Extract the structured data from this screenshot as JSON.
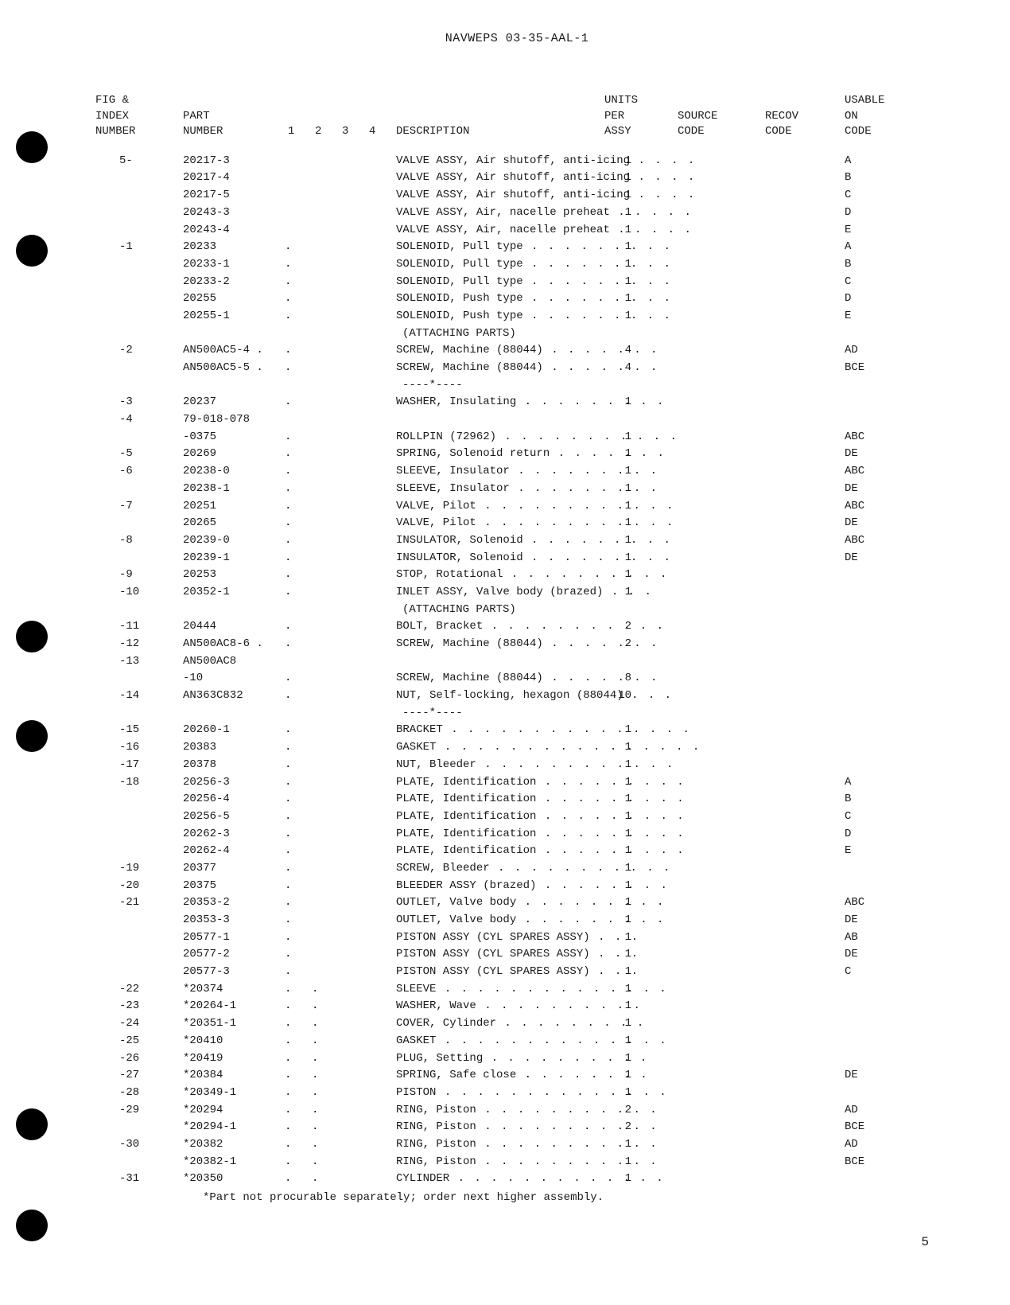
{
  "doc_id": "NAVWEPS 03-35-AAL-1",
  "page_number": "5",
  "footnote": "*Part not procurable separately; order next higher assembly.",
  "headers": {
    "fig": [
      "FIG &",
      "INDEX",
      "NUMBER"
    ],
    "part": [
      "PART",
      "NUMBER"
    ],
    "indent_labels": [
      "1",
      "2",
      "3",
      "4"
    ],
    "desc": "DESCRIPTION",
    "units": [
      "UNITS",
      "PER",
      "ASSY"
    ],
    "source": [
      "SOURCE",
      "CODE"
    ],
    "recov": [
      "RECOV",
      "CODE"
    ],
    "usable": [
      "USABLE",
      "ON",
      "CODE"
    ]
  },
  "rows": [
    {
      "fig": "5-",
      "part": "20217-3",
      "indent": 0,
      "desc": "VALVE ASSY, Air shutoff, anti-icing",
      "dots": 4,
      "units": "1",
      "usable": "A"
    },
    {
      "fig": "",
      "part": "20217-4",
      "indent": 0,
      "desc": "VALVE ASSY, Air shutoff, anti-icing",
      "dots": 4,
      "units": "1",
      "usable": "B"
    },
    {
      "fig": "",
      "part": "20217-5",
      "indent": 0,
      "desc": "VALVE ASSY, Air shutoff, anti-icing",
      "dots": 4,
      "units": "1",
      "usable": "C"
    },
    {
      "fig": "",
      "part": "20243-3",
      "indent": 0,
      "desc": "VALVE ASSY, Air, nacelle preheat",
      "dots": 5,
      "units": "1",
      "usable": "D"
    },
    {
      "fig": "",
      "part": "20243-4",
      "indent": 0,
      "desc": "VALVE ASSY, Air, nacelle preheat",
      "dots": 5,
      "units": "1",
      "usable": "E"
    },
    {
      "fig": "-1",
      "part": "20233",
      "indent": 1,
      "desc": "SOLENOID, Pull type",
      "dots": 9,
      "units": "1",
      "usable": "A"
    },
    {
      "fig": "",
      "part": "20233-1",
      "indent": 1,
      "desc": "SOLENOID, Pull type",
      "dots": 9,
      "units": "1",
      "usable": "B"
    },
    {
      "fig": "",
      "part": "20233-2",
      "indent": 1,
      "desc": "SOLENOID, Pull type",
      "dots": 9,
      "units": "1",
      "usable": "C"
    },
    {
      "fig": "",
      "part": "20255",
      "indent": 1,
      "desc": "SOLENOID, Push type",
      "dots": 9,
      "units": "1",
      "usable": "D"
    },
    {
      "fig": "",
      "part": "20255-1",
      "indent": 1,
      "desc": "SOLENOID, Push type",
      "dots": 9,
      "units": "1",
      "usable": "E"
    },
    {
      "type": "note",
      "text": "(ATTACHING PARTS)"
    },
    {
      "fig": "-2",
      "part": "AN500AC5-4",
      "pdot": true,
      "indent": 1,
      "desc": "SCREW, Machine (88044)",
      "dots": 7,
      "units": "4",
      "usable": "AD"
    },
    {
      "fig": "",
      "part": "AN500AC5-5",
      "pdot": true,
      "indent": 1,
      "desc": "SCREW, Machine (88044)",
      "dots": 7,
      "units": "4",
      "usable": "BCE"
    },
    {
      "type": "note",
      "text": "----*----"
    },
    {
      "fig": "-3",
      "part": "20237",
      "indent": 1,
      "desc": "WASHER, Insulating",
      "dots": 9,
      "units": "1",
      "usable": ""
    },
    {
      "fig": "-4",
      "part": "79-018-078",
      "indent": 0,
      "desc": "",
      "dots": 0,
      "units": "",
      "usable": ""
    },
    {
      "fig": "",
      "part": "-0375",
      "indent": 1,
      "desc": "ROLLPIN (72962)",
      "dots": 11,
      "units": "1",
      "usable": "ABC"
    },
    {
      "fig": "-5",
      "part": "20269",
      "indent": 1,
      "desc": "SPRING, Solenoid return",
      "dots": 7,
      "units": "1",
      "usable": "DE"
    },
    {
      "fig": "-6",
      "part": "20238-0",
      "indent": 1,
      "desc": "SLEEVE, Insulator",
      "dots": 9,
      "units": "1",
      "usable": "ABC"
    },
    {
      "fig": "",
      "part": "20238-1",
      "indent": 1,
      "desc": "SLEEVE, Insulator",
      "dots": 9,
      "units": "1",
      "usable": "DE"
    },
    {
      "fig": "-7",
      "part": "20251",
      "indent": 1,
      "desc": "VALVE, Pilot",
      "dots": 12,
      "units": "1",
      "usable": "ABC"
    },
    {
      "fig": "",
      "part": "20265",
      "indent": 1,
      "desc": "VALVE, Pilot",
      "dots": 12,
      "units": "1",
      "usable": "DE"
    },
    {
      "fig": "-8",
      "part": "20239-0",
      "indent": 1,
      "desc": "INSULATOR, Solenoid",
      "dots": 9,
      "units": "1",
      "usable": "ABC"
    },
    {
      "fig": "",
      "part": "20239-1",
      "indent": 1,
      "desc": "INSULATOR, Solenoid",
      "dots": 9,
      "units": "1",
      "usable": "DE"
    },
    {
      "fig": "-9",
      "part": "20253",
      "indent": 1,
      "desc": "STOP, Rotational",
      "dots": 10,
      "units": "1",
      "usable": ""
    },
    {
      "fig": "-10",
      "part": "20352-1",
      "indent": 1,
      "desc": "INLET ASSY, Valve body (brazed)",
      "dots": 3,
      "units": "1",
      "usable": ""
    },
    {
      "type": "note",
      "text": "(ATTACHING PARTS)"
    },
    {
      "fig": "-11",
      "part": "20444",
      "indent": 1,
      "desc": "BOLT, Bracket",
      "dots": 11,
      "units": "2",
      "usable": ""
    },
    {
      "fig": "-12",
      "part": "AN500AC8-6",
      "pdot": true,
      "indent": 1,
      "desc": "SCREW, Machine (88044)",
      "dots": 7,
      "units": "2",
      "usable": ""
    },
    {
      "fig": "-13",
      "part": "AN500AC8",
      "indent": 0,
      "desc": "",
      "dots": 0,
      "units": "",
      "usable": ""
    },
    {
      "fig": "",
      "part": "-10",
      "indent": 1,
      "desc": "SCREW, Machine (88044)",
      "dots": 7,
      "units": "8",
      "usable": ""
    },
    {
      "fig": "-14",
      "part": "AN363C832",
      "indent": 1,
      "desc": "NUT, Self-locking, hexagon (88044)",
      "dots": 3,
      "units": "10",
      "usable": ""
    },
    {
      "type": "note",
      "text": "----*----"
    },
    {
      "fig": "-15",
      "part": "20260-1",
      "indent": 1,
      "desc": "BRACKET",
      "dots": 15,
      "units": "1",
      "usable": ""
    },
    {
      "fig": "-16",
      "part": "20383",
      "indent": 1,
      "desc": "GASKET",
      "dots": 16,
      "units": "1",
      "usable": ""
    },
    {
      "fig": "-17",
      "part": "20378",
      "indent": 1,
      "desc": "NUT, Bleeder",
      "dots": 12,
      "units": "1",
      "usable": ""
    },
    {
      "fig": "-18",
      "part": "20256-3",
      "indent": 1,
      "desc": "PLATE, Identification",
      "dots": 9,
      "units": "1",
      "usable": "A"
    },
    {
      "fig": "",
      "part": "20256-4",
      "indent": 1,
      "desc": "PLATE, Identification",
      "dots": 9,
      "units": "1",
      "usable": "B"
    },
    {
      "fig": "",
      "part": "20256-5",
      "indent": 1,
      "desc": "PLATE, Identification",
      "dots": 9,
      "units": "1",
      "usable": "C"
    },
    {
      "fig": "",
      "part": "20262-3",
      "indent": 1,
      "desc": "PLATE, Identification",
      "dots": 9,
      "units": "1",
      "usable": "D"
    },
    {
      "fig": "",
      "part": "20262-4",
      "indent": 1,
      "desc": "PLATE, Identification",
      "dots": 9,
      "units": "1",
      "usable": "E"
    },
    {
      "fig": "-19",
      "part": "20377",
      "indent": 1,
      "desc": "SCREW, Bleeder",
      "dots": 11,
      "units": "1",
      "usable": ""
    },
    {
      "fig": "-20",
      "part": "20375",
      "indent": 1,
      "desc": "BLEEDER ASSY (brazed)",
      "dots": 8,
      "units": "1",
      "usable": ""
    },
    {
      "fig": "-21",
      "part": "20353-2",
      "indent": 1,
      "desc": "OUTLET, Valve body",
      "dots": 9,
      "units": "1",
      "usable": "ABC"
    },
    {
      "fig": "",
      "part": "20353-3",
      "indent": 1,
      "desc": "OUTLET, Valve body",
      "dots": 9,
      "units": "1",
      "usable": "DE"
    },
    {
      "fig": "",
      "part": "20577-1",
      "indent": 1,
      "desc": "PISTON ASSY (CYL SPARES ASSY)",
      "dots": 3,
      "units": "1",
      "usable": "AB"
    },
    {
      "fig": "",
      "part": "20577-2",
      "indent": 1,
      "desc": "PISTON ASSY (CYL SPARES ASSY)",
      "dots": 3,
      "units": "1",
      "usable": "DE"
    },
    {
      "fig": "",
      "part": "20577-3",
      "indent": 1,
      "desc": "PISTON ASSY (CYL SPARES ASSY)",
      "dots": 3,
      "units": "1",
      "usable": "C"
    },
    {
      "fig": "-22",
      "part": "*20374",
      "indent": 2,
      "desc": "SLEEVE",
      "dots": 14,
      "units": "1",
      "usable": ""
    },
    {
      "fig": "-23",
      "part": "*20264-1",
      "indent": 2,
      "desc": "WASHER, Wave",
      "dots": 10,
      "units": "1",
      "usable": ""
    },
    {
      "fig": "-24",
      "part": "*20351-1",
      "indent": 2,
      "desc": "COVER, Cylinder",
      "dots": 9,
      "units": "1",
      "usable": ""
    },
    {
      "fig": "-25",
      "part": "*20410",
      "indent": 2,
      "desc": "GASKET",
      "dots": 14,
      "units": "1",
      "usable": ""
    },
    {
      "fig": "-26",
      "part": "*20419",
      "indent": 2,
      "desc": "PLUG, Setting",
      "dots": 10,
      "units": "1",
      "usable": ""
    },
    {
      "fig": "-27",
      "part": "*20384",
      "indent": 2,
      "desc": "SPRING, Safe close",
      "dots": 8,
      "units": "1",
      "usable": "DE"
    },
    {
      "fig": "-28",
      "part": "*20349-1",
      "indent": 2,
      "desc": "PISTON",
      "dots": 14,
      "units": "1",
      "usable": ""
    },
    {
      "fig": "-29",
      "part": "*20294",
      "indent": 2,
      "desc": "RING, Piston",
      "dots": 11,
      "units": "2",
      "usable": "AD"
    },
    {
      "fig": "",
      "part": "*20294-1",
      "indent": 2,
      "desc": "RING, Piston",
      "dots": 11,
      "units": "2",
      "usable": "BCE"
    },
    {
      "fig": "-30",
      "part": "*20382",
      "indent": 2,
      "desc": "RING, Piston",
      "dots": 11,
      "units": "1",
      "usable": "AD"
    },
    {
      "fig": "",
      "part": "*20382-1",
      "indent": 2,
      "desc": "RING, Piston",
      "dots": 11,
      "units": "1",
      "usable": "BCE"
    },
    {
      "fig": "-31",
      "part": "*20350",
      "indent": 2,
      "desc": "CYLINDER",
      "dots": 13,
      "units": "1",
      "usable": ""
    }
  ]
}
